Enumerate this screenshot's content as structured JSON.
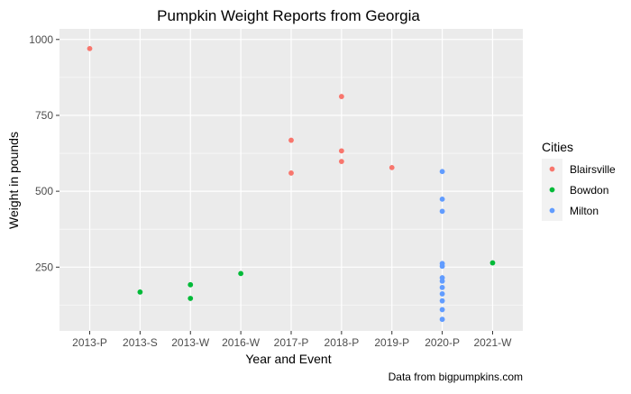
{
  "chart_data": {
    "type": "scatter",
    "title": "Pumpkin Weight Reports from Georgia",
    "xlabel": "Year and Event",
    "ylabel": "Weight in pounds",
    "caption": "Data from bigpumpkins.com",
    "categories": [
      "2013-P",
      "2013-S",
      "2013-W",
      "2016-W",
      "2017-P",
      "2018-P",
      "2019-P",
      "2020-P",
      "2021-W"
    ],
    "y_ticks": [
      250,
      500,
      750,
      1000
    ],
    "ylim": [
      40,
      1035
    ],
    "grid": true,
    "legend": {
      "title": "Cities",
      "position": "right"
    },
    "series": [
      {
        "name": "Blairsville",
        "color": "#F8766D",
        "points": [
          {
            "x": "2013-P",
            "y": 970
          },
          {
            "x": "2017-P",
            "y": 668
          },
          {
            "x": "2017-P",
            "y": 560
          },
          {
            "x": "2018-P",
            "y": 812
          },
          {
            "x": "2018-P",
            "y": 633
          },
          {
            "x": "2018-P",
            "y": 598
          },
          {
            "x": "2019-P",
            "y": 578
          }
        ]
      },
      {
        "name": "Bowdon",
        "color": "#00BA38",
        "points": [
          {
            "x": "2013-S",
            "y": 168
          },
          {
            "x": "2013-W",
            "y": 192
          },
          {
            "x": "2013-W",
            "y": 147
          },
          {
            "x": "2016-W",
            "y": 229
          },
          {
            "x": "2021-W",
            "y": 264
          }
        ]
      },
      {
        "name": "Milton",
        "color": "#619CFF",
        "points": [
          {
            "x": "2020-P",
            "y": 565
          },
          {
            "x": "2020-P",
            "y": 474
          },
          {
            "x": "2020-P",
            "y": 434
          },
          {
            "x": "2020-P",
            "y": 262
          },
          {
            "x": "2020-P",
            "y": 253
          },
          {
            "x": "2020-P",
            "y": 215
          },
          {
            "x": "2020-P",
            "y": 204
          },
          {
            "x": "2020-P",
            "y": 183
          },
          {
            "x": "2020-P",
            "y": 162
          },
          {
            "x": "2020-P",
            "y": 139
          },
          {
            "x": "2020-P",
            "y": 110
          },
          {
            "x": "2020-P",
            "y": 78
          }
        ]
      }
    ]
  }
}
